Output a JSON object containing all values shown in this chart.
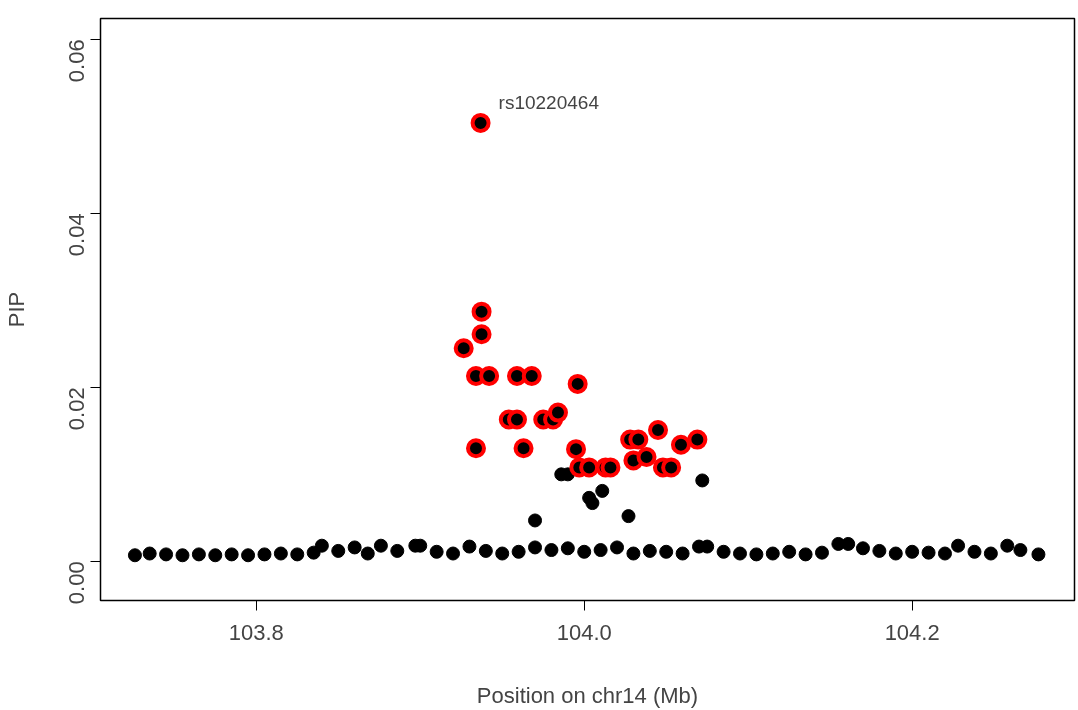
{
  "chart_data": {
    "type": "scatter",
    "xlabel": "Position on chr14 (Mb)",
    "ylabel": "PIP",
    "xlim": [
      103.705,
      104.299
    ],
    "ylim": [
      -0.0045,
      0.0624
    ],
    "xticks": [
      {
        "value": 103.8,
        "label": "103.8"
      },
      {
        "value": 104.0,
        "label": "104.0"
      },
      {
        "value": 104.2,
        "label": "104.2"
      }
    ],
    "yticks": [
      {
        "value": 0,
        "label": "0.00"
      },
      {
        "value": 0.02,
        "label": "0.02"
      },
      {
        "value": 0.04,
        "label": "0.04"
      },
      {
        "value": 0.06,
        "label": "0.06"
      }
    ],
    "grid": false,
    "marker": "circle",
    "series": [
      {
        "color": "#ff0000",
        "x": [
          103.9368,
          103.9374,
          103.9374,
          103.9265,
          103.934,
          103.942,
          103.959,
          103.968,
          103.954,
          103.959,
          103.975,
          103.981,
          103.984,
          103.996,
          103.934,
          103.963,
          103.995,
          103.997,
          104.003,
          104.013,
          104.016,
          104.028,
          104.033,
          104.045,
          104.059,
          104.069,
          104.03,
          104.038,
          104.048,
          104.053
        ],
        "values": [
          0.0504,
          0.0287,
          0.0261,
          0.0245,
          0.0213,
          0.0213,
          0.0213,
          0.0213,
          0.0163,
          0.0163,
          0.0163,
          0.0163,
          0.0171,
          0.0204,
          0.013,
          0.013,
          0.0129,
          0.0108,
          0.0108,
          0.0108,
          0.0108,
          0.014,
          0.014,
          0.0151,
          0.0134,
          0.014,
          0.0116,
          0.012,
          0.0108,
          0.0108
        ]
      },
      {
        "color": "#000000",
        "x": [
          103.986,
          103.99,
          104.003,
          104.005,
          104.011,
          103.97,
          104.027,
          104.072,
          103.726,
          103.735,
          103.745,
          103.755,
          103.765,
          103.775,
          103.785,
          103.795,
          103.805,
          103.815,
          103.825,
          103.835,
          103.84,
          103.85,
          103.86,
          103.868,
          103.876,
          103.886,
          103.897,
          103.9,
          103.91,
          103.92,
          103.93,
          103.94,
          103.95,
          103.96,
          103.97,
          103.98,
          103.99,
          104.0,
          104.01,
          104.02,
          104.03,
          104.04,
          104.05,
          104.06,
          104.07,
          104.075,
          104.085,
          104.095,
          104.105,
          104.115,
          104.125,
          104.135,
          104.145,
          104.155,
          104.161,
          104.17,
          104.18,
          104.19,
          104.2,
          104.21,
          104.22,
          104.228,
          104.238,
          104.248,
          104.258,
          104.266,
          104.277
        ],
        "values": [
          0.01,
          0.01,
          0.0073,
          0.0067,
          0.0081,
          0.0047,
          0.0052,
          0.0093,
          0.0007,
          0.0009,
          0.0008,
          0.0007,
          0.0008,
          0.0007,
          0.0008,
          0.0007,
          0.0008,
          0.0009,
          0.0008,
          0.001,
          0.0018,
          0.0012,
          0.0016,
          0.0009,
          0.0018,
          0.0012,
          0.0018,
          0.0018,
          0.0011,
          0.0009,
          0.0017,
          0.0012,
          0.0009,
          0.0011,
          0.0016,
          0.0013,
          0.0015,
          0.0011,
          0.0013,
          0.0016,
          0.0009,
          0.0012,
          0.0011,
          0.0009,
          0.0017,
          0.0017,
          0.0011,
          0.0009,
          0.0008,
          0.0009,
          0.0011,
          0.0008,
          0.001,
          0.002,
          0.002,
          0.0015,
          0.0012,
          0.0009,
          0.0011,
          0.001,
          0.0009,
          0.0018,
          0.0011,
          0.0009,
          0.0018,
          0.0013,
          0.0008
        ]
      }
    ],
    "annotations": [
      {
        "text": "rs10220464",
        "x": 103.9368,
        "y": 0.0504
      }
    ]
  }
}
